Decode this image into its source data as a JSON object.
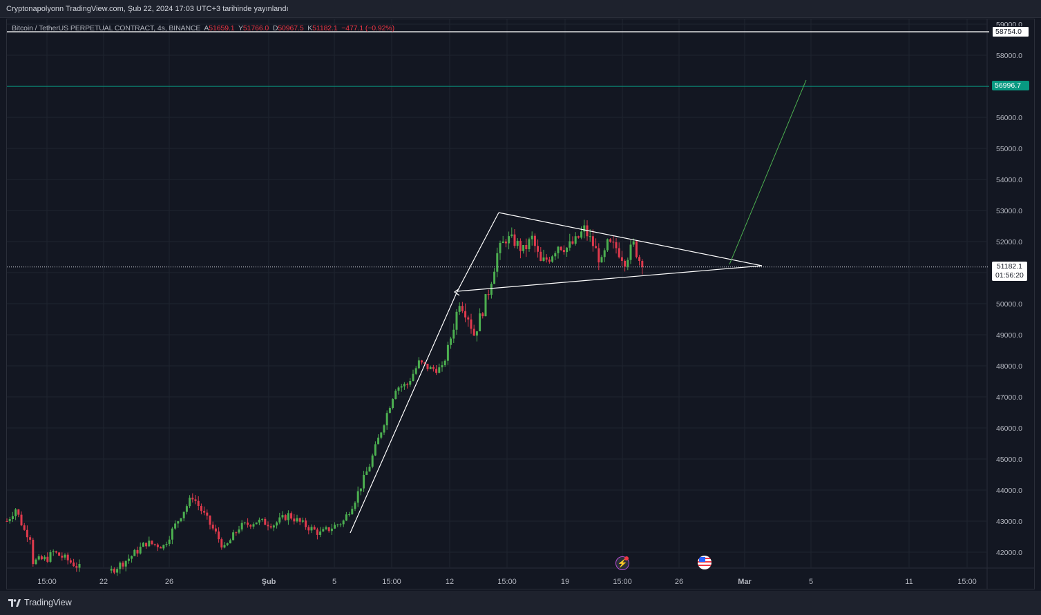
{
  "header": {
    "publish_note": "Cryptonapolyonn TradingView.com, Şub 22, 2024 17:03 UTC+3 tarihinde yayınlandı"
  },
  "legend": {
    "symbol": "Bitcoin / TetherUS PERPETUAL CONTRACT, 4s, BINANCE",
    "open_label": "A",
    "open": "51659.1",
    "high_label": "Y",
    "high": "51766.0",
    "low_label": "D",
    "low": "50967.5",
    "close_label": "K",
    "close": "51182.1",
    "change": "−477.1 (−0.92%)"
  },
  "price_labels": {
    "horizontal_white": "58754.0",
    "horizontal_green": "56996.7",
    "last_price": "51182.1",
    "countdown": "01:56:20"
  },
  "footer": {
    "brand": "TradingView"
  },
  "colors": {
    "background": "#131722",
    "grid": "#1f2430",
    "up": "#22ab94",
    "down": "#f23645",
    "up_candle": "#4caf50",
    "down_candle": "#e03a4d",
    "green_line": "#089981",
    "white": "#ffffff"
  },
  "events": [
    "earnings-flash-icon",
    "us-flag-icon"
  ],
  "chart_data": {
    "type": "candlestick",
    "symbol": "Bitcoin / TetherUS PERPETUAL CONTRACT",
    "interval": "4s",
    "ylim": [
      41500,
      59100
    ],
    "y_ticks": [
      42000,
      43000,
      44000,
      45000,
      46000,
      47000,
      48000,
      49000,
      50000,
      51000,
      52000,
      53000,
      54000,
      55000,
      56000,
      57000,
      58000,
      59000
    ],
    "y_tick_labels": [
      "42000.0",
      "43000.0",
      "44000.0",
      "45000.0",
      "46000.0",
      "47000.0",
      "48000.0",
      "49000.0",
      "50000.0",
      "51000.0",
      "52000.0",
      "53000.0",
      "54000.0",
      "55000.0",
      "56000.0",
      "57000.0",
      "58000.0",
      "59000.0"
    ],
    "x_tick_labels": [
      "15:00",
      "22",
      "26",
      "Şub",
      "5",
      "15:00",
      "12",
      "15:00",
      "19",
      "15:00",
      "26",
      "Mar",
      "5",
      "11",
      "15:00"
    ],
    "horizontal_lines": [
      {
        "price": 58754.0,
        "color": "white"
      },
      {
        "price": 56996.7,
        "color": "green"
      }
    ],
    "last_price": 51182.1,
    "price_path": [
      [
        0,
        43000
      ],
      [
        3,
        43400
      ],
      [
        6,
        42700
      ],
      [
        8,
        42500
      ],
      [
        9,
        41700
      ],
      [
        14,
        41800
      ],
      [
        16,
        42000
      ],
      [
        20,
        41800
      ],
      [
        25,
        41500
      ],
      [
        36,
        41400
      ],
      [
        42,
        41800
      ],
      [
        48,
        42300
      ],
      [
        54,
        42200
      ],
      [
        60,
        43200
      ],
      [
        64,
        43800
      ],
      [
        68,
        43200
      ],
      [
        72,
        42600
      ],
      [
        75,
        42100
      ],
      [
        80,
        42800
      ],
      [
        86,
        43000
      ],
      [
        92,
        42900
      ],
      [
        97,
        43200
      ],
      [
        102,
        42900
      ],
      [
        108,
        42600
      ],
      [
        112,
        42800
      ],
      [
        116,
        43000
      ],
      [
        120,
        43700
      ],
      [
        125,
        44800
      ],
      [
        130,
        46200
      ],
      [
        134,
        47300
      ],
      [
        138,
        47400
      ],
      [
        142,
        48100
      ],
      [
        146,
        47900
      ],
      [
        150,
        47900
      ],
      [
        153,
        48900
      ],
      [
        156,
        50100
      ],
      [
        159,
        49600
      ],
      [
        161,
        49000
      ],
      [
        164,
        49800
      ],
      [
        166,
        50400
      ],
      [
        169,
        51600
      ],
      [
        172,
        52100
      ],
      [
        175,
        52000
      ],
      [
        178,
        51700
      ],
      [
        181,
        52100
      ],
      [
        184,
        51300
      ],
      [
        187,
        51500
      ],
      [
        190,
        51900
      ],
      [
        193,
        51800
      ],
      [
        196,
        52000
      ],
      [
        199,
        52400
      ],
      [
        202,
        51900
      ],
      [
        205,
        51300
      ],
      [
        207,
        51900
      ],
      [
        210,
        51800
      ],
      [
        213,
        51400
      ],
      [
        216,
        51900
      ],
      [
        219,
        51182
      ]
    ]
  }
}
